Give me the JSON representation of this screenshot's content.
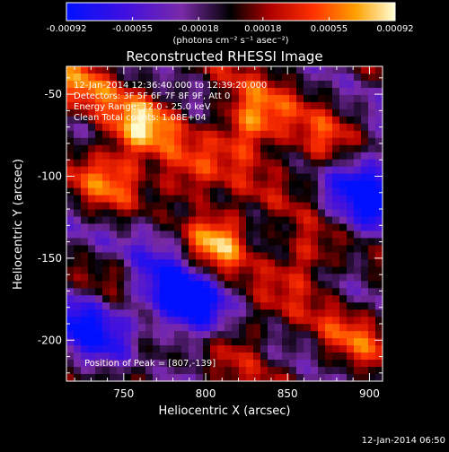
{
  "chart_data": {
    "type": "heatmap",
    "title": "Reconstructed RHESSI Image",
    "xlabel": "Heliocentric X (arcsec)",
    "ylabel": "Heliocentric Y (arcsec)",
    "xlim": [
      715,
      908
    ],
    "ylim": [
      -225,
      -33
    ],
    "x_ticks": [
      750,
      800,
      850,
      900
    ],
    "y_ticks": [
      -50,
      -100,
      -150,
      -200
    ],
    "colorbar": {
      "range": [
        -0.00092,
        0.00092
      ],
      "tick_values": [
        -0.00092,
        -0.00055,
        -0.00018,
        0.00018,
        0.00055,
        0.00092
      ],
      "tick_labels": [
        "-0.00092",
        "-0.00055",
        "-0.00018",
        "0.00018",
        "0.00055",
        "0.00092"
      ],
      "units_label": "(photons cm⁻² s⁻¹ asec⁻²)"
    },
    "info_lines": [
      "12-Jan-2014 12:36:40.000 to 12:39:20.000",
      "Detectors: 3F 5F 6F 7F 8F 9F, Att 0",
      "Energy Range: 12.0 - 25.0 keV",
      "Clean     Total counts: 1.08E+04"
    ],
    "peak_label": "Position of Peak = [807,-139]",
    "peak": {
      "x": 807,
      "y": -139,
      "value": 0.00092
    },
    "sources": [
      {
        "x": 807,
        "y": -139,
        "amp": 1.0
      },
      {
        "x": 828,
        "y": -68,
        "amp": 0.85
      },
      {
        "x": 760,
        "y": -70,
        "amp": 0.72
      },
      {
        "x": 745,
        "y": -100,
        "amp": 0.6
      },
      {
        "x": 785,
        "y": -105,
        "amp": 0.62
      },
      {
        "x": 870,
        "y": -85,
        "amp": 0.55
      },
      {
        "x": 745,
        "y": -160,
        "amp": 0.5
      },
      {
        "x": 860,
        "y": -150,
        "amp": 0.55
      },
      {
        "x": 820,
        "y": -195,
        "amp": 0.5
      },
      {
        "x": 765,
        "y": -210,
        "amp": 0.42
      },
      {
        "x": 890,
        "y": -200,
        "amp": 0.35
      },
      {
        "x": 725,
        "y": -45,
        "amp": 0.45
      }
    ],
    "negatives": [
      {
        "x": 790,
        "y": -180,
        "amp": 0.9
      },
      {
        "x": 900,
        "y": -110,
        "amp": 0.9
      },
      {
        "x": 730,
        "y": -190,
        "amp": 0.75
      },
      {
        "x": 770,
        "y": -135,
        "amp": 0.45
      }
    ],
    "ripple": {
      "amp": 0.55,
      "angle_deg": 30,
      "period": 52
    }
  },
  "footer_timestamp": "12-Jan-2014 06:50"
}
